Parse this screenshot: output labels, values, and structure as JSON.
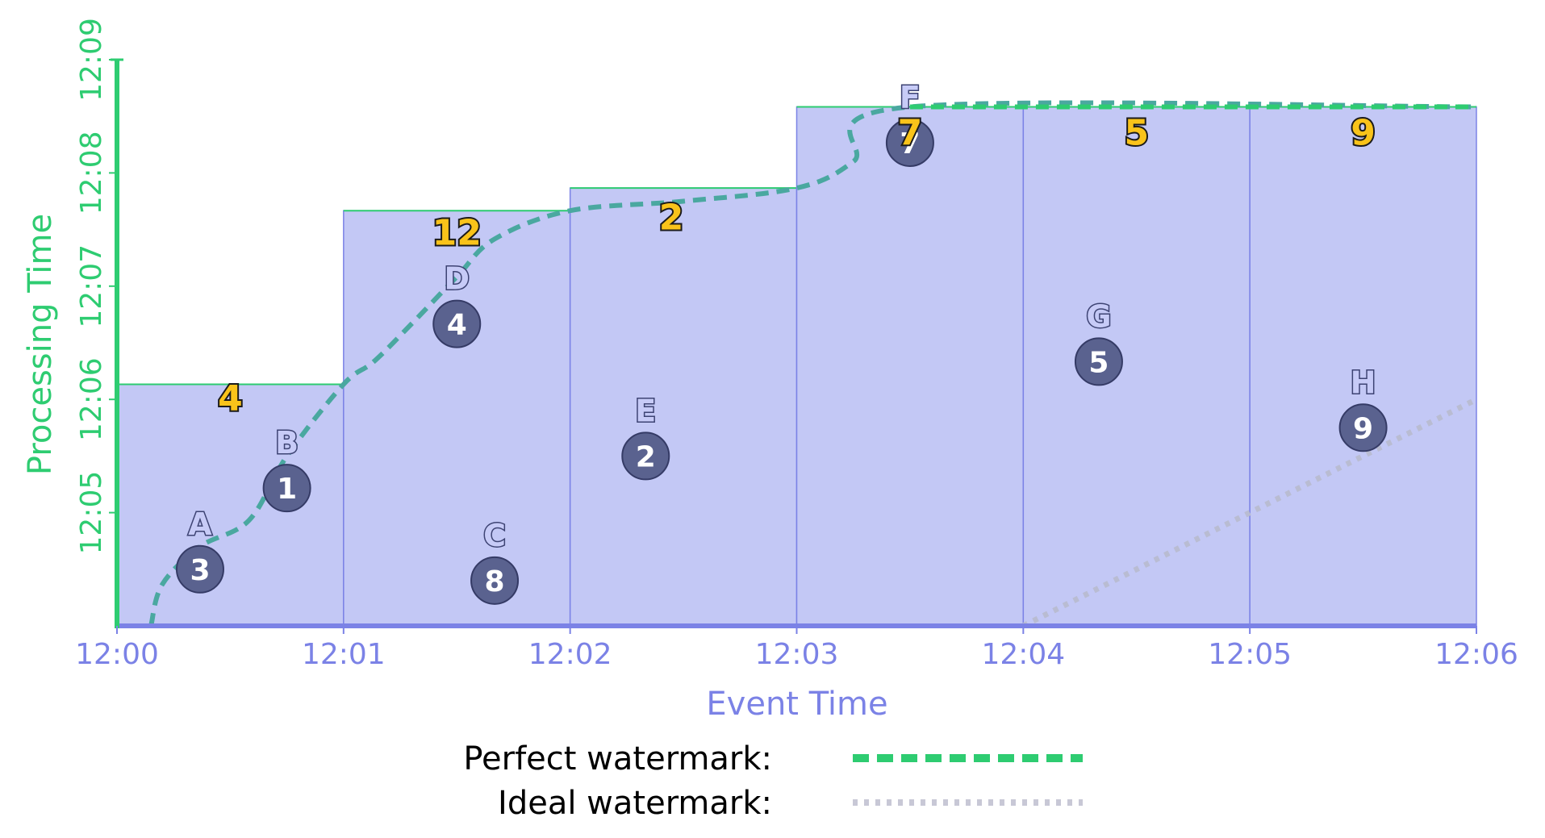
{
  "chart_data": {
    "type": "scatter",
    "xlabel": "Event Time",
    "ylabel": "Processing Time",
    "x_ticks": [
      "12:00",
      "12:01",
      "12:02",
      "12:03",
      "12:04",
      "12:05",
      "12:06"
    ],
    "y_ticks": [
      "12:05",
      "12:06",
      "12:07",
      "12:08",
      "12:09"
    ],
    "xlim": [
      "12:00:00",
      "12:06:00"
    ],
    "ylim": [
      "12:04:00",
      "12:09:00"
    ],
    "points": [
      {
        "label": "A",
        "value": 3,
        "event_time": "12:00:22",
        "processing_time": "12:04:30"
      },
      {
        "label": "B",
        "value": 1,
        "event_time": "12:00:45",
        "processing_time": "12:05:13"
      },
      {
        "label": "C",
        "value": 8,
        "event_time": "12:01:40",
        "processing_time": "12:04:24"
      },
      {
        "label": "D",
        "value": 4,
        "event_time": "12:01:30",
        "processing_time": "12:06:40"
      },
      {
        "label": "E",
        "value": 2,
        "event_time": "12:02:20",
        "processing_time": "12:05:30"
      },
      {
        "label": "F",
        "value": 7,
        "event_time": "12:03:30",
        "processing_time": "12:08:16"
      },
      {
        "label": "G",
        "value": 5,
        "event_time": "12:04:20",
        "processing_time": "12:06:20"
      },
      {
        "label": "H",
        "value": 9,
        "event_time": "12:05:30",
        "processing_time": "12:05:45"
      }
    ],
    "windows": [
      {
        "start": "12:00:00",
        "end": "12:01:00",
        "fired_at": "12:06:08",
        "sum": 4
      },
      {
        "start": "12:01:00",
        "end": "12:02:00",
        "fired_at": "12:07:40",
        "sum": 12
      },
      {
        "start": "12:02:00",
        "end": "12:03:00",
        "fired_at": "12:07:52",
        "sum": 2
      },
      {
        "start": "12:03:00",
        "end": "12:04:00",
        "fired_at": "12:08:35",
        "sum": 7
      },
      {
        "start": "12:04:00",
        "end": "12:05:00",
        "fired_at": "12:08:35",
        "sum": 5
      },
      {
        "start": "12:05:00",
        "end": "12:06:00",
        "fired_at": "12:08:35",
        "sum": 9
      }
    ],
    "perfect_watermark": [
      {
        "event_time": "12:00:09",
        "processing_time": "12:04:00"
      },
      {
        "event_time": "12:00:12",
        "processing_time": "12:04:22"
      },
      {
        "event_time": "12:00:22",
        "processing_time": "12:04:42"
      },
      {
        "event_time": "12:00:35",
        "processing_time": "12:04:56"
      },
      {
        "event_time": "12:00:45",
        "processing_time": "12:05:30"
      },
      {
        "event_time": "12:01:00",
        "processing_time": "12:06:08"
      },
      {
        "event_time": "12:01:08",
        "processing_time": "12:06:20"
      },
      {
        "event_time": "12:01:18",
        "processing_time": "12:06:40"
      },
      {
        "event_time": "12:01:30",
        "processing_time": "12:07:05"
      },
      {
        "event_time": "12:01:40",
        "processing_time": "12:07:25"
      },
      {
        "event_time": "12:02:00",
        "processing_time": "12:07:40"
      },
      {
        "event_time": "12:02:30",
        "processing_time": "12:07:45"
      },
      {
        "event_time": "12:03:00",
        "processing_time": "12:07:52"
      },
      {
        "event_time": "12:03:15",
        "processing_time": "12:08:06"
      },
      {
        "event_time": "12:03:30",
        "processing_time": "12:08:35"
      },
      {
        "event_time": "12:06:00",
        "processing_time": "12:08:35"
      }
    ],
    "ideal_watermark": [
      {
        "event_time": "12:04:00",
        "processing_time": "12:04:00"
      },
      {
        "event_time": "12:06:00",
        "processing_time": "12:06:00"
      }
    ],
    "legend": [
      {
        "label": "Perfect watermark:",
        "style": "dashed",
        "color": "#2ecc71"
      },
      {
        "label": "Ideal watermark:",
        "style": "dotted",
        "color": "#c8c8d6"
      }
    ],
    "colors": {
      "window_fill": "#c3c8f5",
      "window_stroke": "#7b82e6",
      "window_top": "#2ecc71",
      "x_axis": "#7b82e6",
      "y_axis": "#2ecc71",
      "point_fill": "#5a628f",
      "watermark_curve": "#4aa8a0",
      "sum_fill": "#f9c31a"
    }
  }
}
